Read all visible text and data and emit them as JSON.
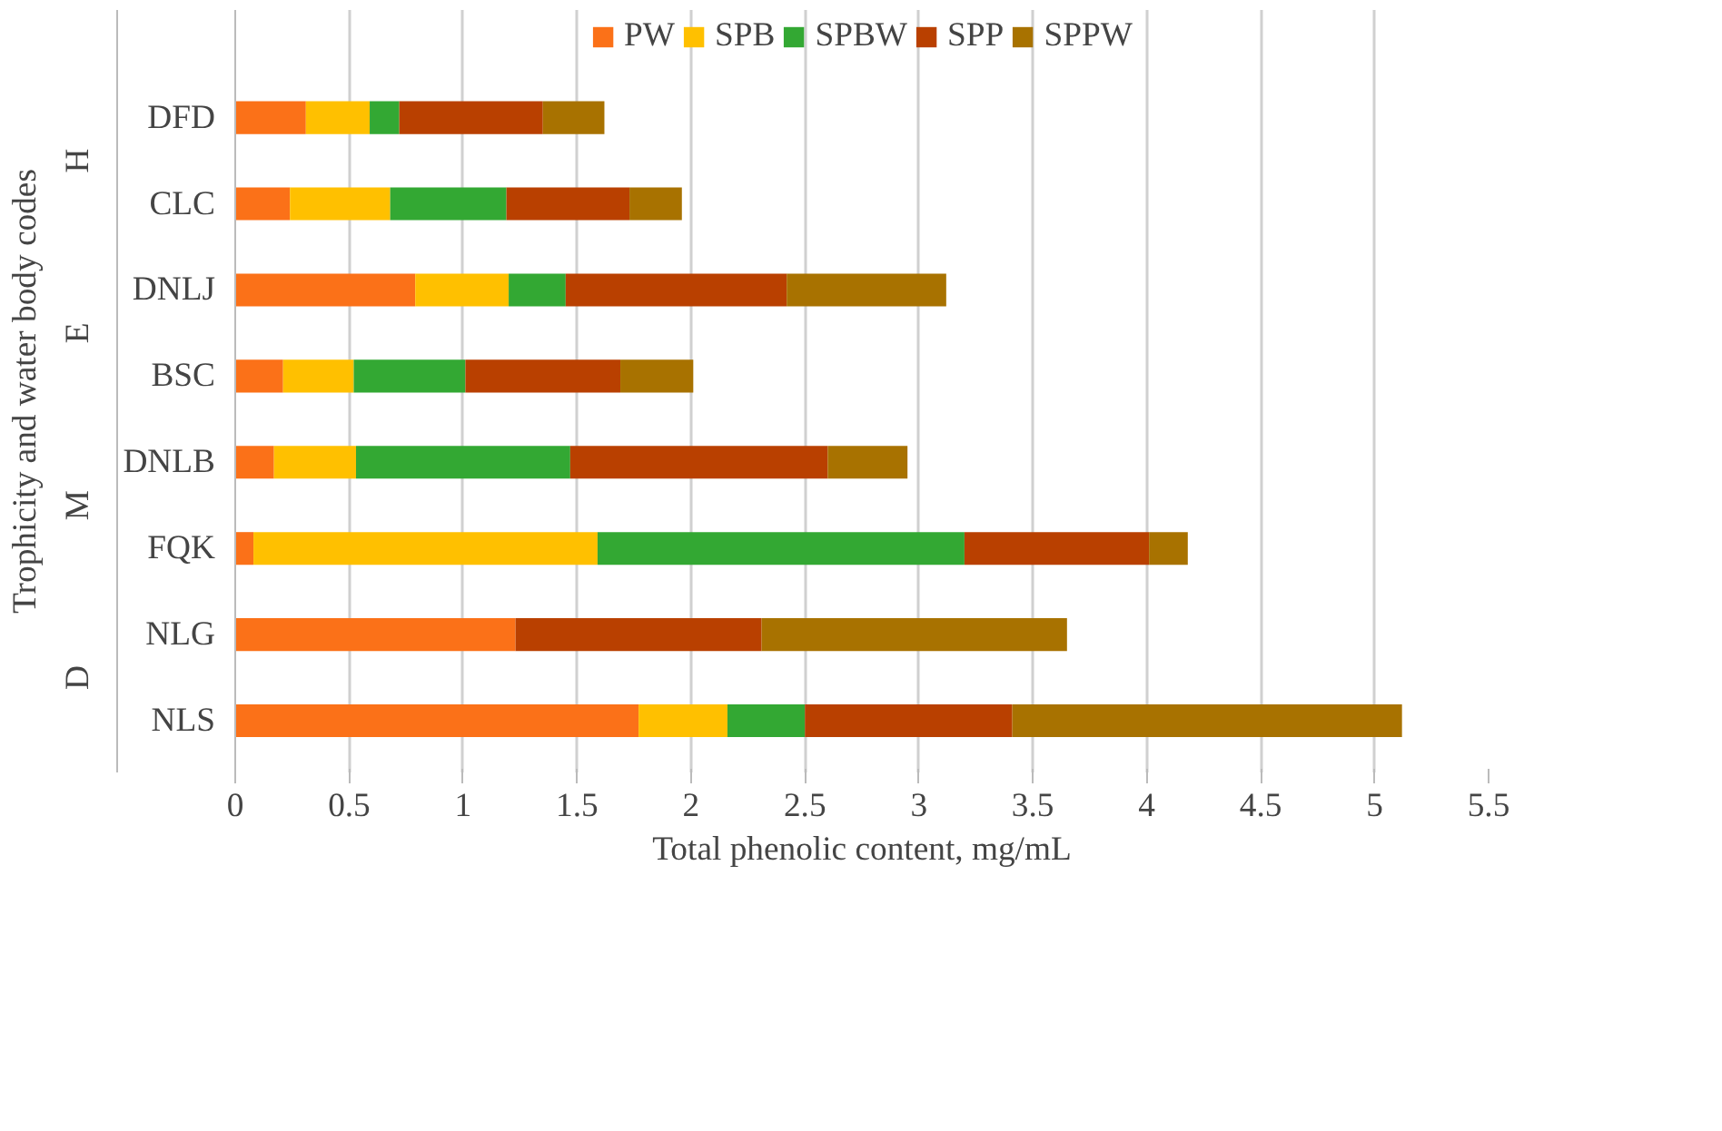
{
  "chart_data": {
    "type": "bar",
    "orientation": "horizontal",
    "stacked": true,
    "xlabel": "Total phenolic content, mg/mL",
    "ylabel": "Trophicity and water body codes",
    "categories": [
      "DFD",
      "CLC",
      "DNLJ",
      "BSC",
      "DNLB",
      "FQK",
      "NLG",
      "NLS"
    ],
    "annotations": [
      "H",
      "E",
      "M",
      "D"
    ],
    "series": [
      {
        "name": "PW",
        "color": "#fb7118",
        "values": [
          0.31,
          0.24,
          0.79,
          0.21,
          0.17,
          0.08,
          1.23,
          1.77
        ]
      },
      {
        "name": "SPB",
        "color": "#ffc000",
        "values": [
          0.28,
          0.44,
          0.41,
          0.31,
          0.36,
          1.51,
          0,
          0.39
        ]
      },
      {
        "name": "SPBW",
        "color": "#33a833",
        "values": [
          0.13,
          0.51,
          0.25,
          0.49,
          0.94,
          1.61,
          0,
          0.34
        ]
      },
      {
        "name": "SPP",
        "color": "#b94000",
        "values": [
          0.63,
          0.54,
          0.97,
          0.68,
          1.13,
          0.81,
          1.08,
          0.91
        ]
      },
      {
        "name": "SPPW",
        "color": "#a87200",
        "values": [
          0.27,
          0.23,
          0.7,
          0.32,
          0.35,
          0.17,
          1.34,
          1.71
        ]
      }
    ],
    "xlim": [
      0,
      5.5
    ],
    "xticks": [
      0,
      0.5,
      1,
      1.5,
      2,
      2.5,
      3,
      3.5,
      4,
      4.5,
      5,
      5.5
    ],
    "grid": "x",
    "legend": "top"
  }
}
